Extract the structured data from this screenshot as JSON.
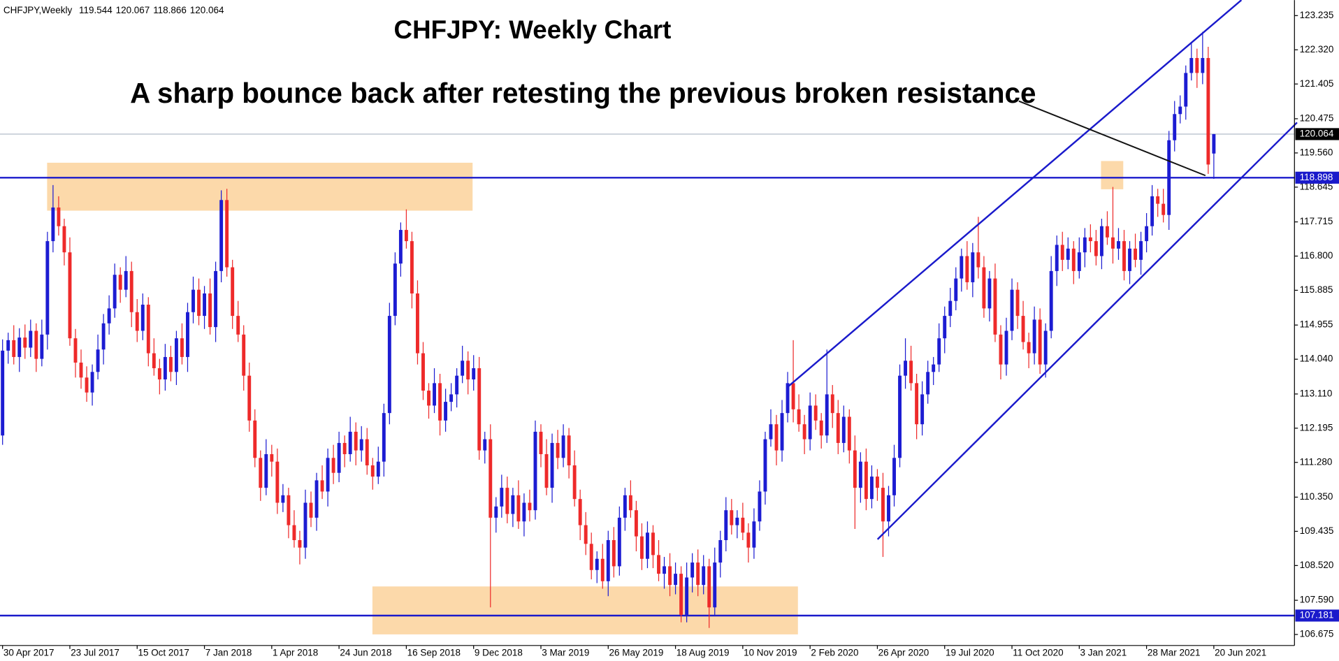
{
  "info": {
    "symbol": "CHFJPY,Weekly",
    "ohlc": [
      119.544,
      120.067,
      118.866,
      120.064
    ]
  },
  "chart_data": {
    "type": "candlestick",
    "title": "CHFJPY: Weekly Chart",
    "annotation": "A sharp bounce back after retesting the previous broken resistance",
    "up_color": "#1c1cd2",
    "down_color": "#ee2a2a",
    "ylim": [
      106.38,
      123.65
    ],
    "yticks": [
      123.235,
      {
        "value": 122.32,
        "label": "122.320"
      },
      121.405,
      120.475,
      {
        "value": 119.56,
        "label": "119.560"
      },
      118.645,
      117.715,
      {
        "value": 116.8,
        "label": "116.800"
      },
      115.885,
      114.955,
      {
        "value": 114.04,
        "label": "114.040"
      },
      {
        "value": 113.11,
        "label": "113.110"
      },
      112.195,
      {
        "value": 111.28,
        "label": "111.280"
      },
      {
        "value": 110.35,
        "label": "110.350"
      },
      109.435,
      {
        "value": 108.52,
        "label": "108.520"
      },
      {
        "value": 107.59,
        "label": "107.590"
      },
      106.675
    ],
    "price_lines": [
      {
        "value": 120.064,
        "color": "#aab4c2",
        "box_color": "#000000",
        "width": 1
      },
      {
        "value": 118.898,
        "color": "#1a1acb",
        "box_color": "#1a1acb",
        "width": 2
      },
      {
        "value": 107.181,
        "color": "#1a1acb",
        "box_color": "#1a1acb",
        "width": 2
      }
    ],
    "categories": [
      "30 Apr 2017",
      null,
      null,
      null,
      null,
      null,
      null,
      null,
      null,
      null,
      null,
      null,
      "23 Jul 2017",
      null,
      null,
      null,
      null,
      null,
      null,
      null,
      null,
      null,
      null,
      null,
      "15 Oct 2017",
      null,
      null,
      null,
      null,
      null,
      null,
      null,
      null,
      null,
      null,
      null,
      "7 Jan 2018",
      null,
      null,
      null,
      null,
      null,
      null,
      null,
      null,
      null,
      null,
      null,
      "1 Apr 2018",
      null,
      null,
      null,
      null,
      null,
      null,
      null,
      null,
      null,
      null,
      null,
      "24 Jun 2018",
      null,
      null,
      null,
      null,
      null,
      null,
      null,
      null,
      null,
      null,
      null,
      "16 Sep 2018",
      null,
      null,
      null,
      null,
      null,
      null,
      null,
      null,
      null,
      null,
      null,
      "9 Dec 2018",
      null,
      null,
      null,
      null,
      null,
      null,
      null,
      null,
      null,
      null,
      null,
      "3 Mar 2019",
      null,
      null,
      null,
      null,
      null,
      null,
      null,
      null,
      null,
      null,
      null,
      "26 May 2019",
      null,
      null,
      null,
      null,
      null,
      null,
      null,
      null,
      null,
      null,
      null,
      "18 Aug 2019",
      null,
      null,
      null,
      null,
      null,
      null,
      null,
      null,
      null,
      null,
      null,
      "10 Nov 2019",
      null,
      null,
      null,
      null,
      null,
      null,
      null,
      null,
      null,
      null,
      null,
      "2 Feb 2020",
      null,
      null,
      null,
      null,
      null,
      null,
      null,
      null,
      null,
      null,
      null,
      "26 Apr 2020",
      null,
      null,
      null,
      null,
      null,
      null,
      null,
      null,
      null,
      null,
      null,
      "19 Jul 2020",
      null,
      null,
      null,
      null,
      null,
      null,
      null,
      null,
      null,
      null,
      null,
      "11 Oct 2020",
      null,
      null,
      null,
      null,
      null,
      null,
      null,
      null,
      null,
      null,
      null,
      "3 Jan 2021",
      null,
      null,
      null,
      null,
      null,
      null,
      null,
      null,
      null,
      null,
      null,
      "28 Mar 2021",
      null,
      null,
      null,
      null,
      null,
      null,
      null,
      null,
      null,
      null,
      null,
      "20 Jun 2021"
    ],
    "open": [
      112.0,
      114.27,
      114.55,
      114.1,
      114.62,
      114.35,
      114.8,
      114.05,
      114.7,
      117.2,
      118.1,
      117.6,
      116.9,
      114.6,
      113.95,
      113.55,
      113.15,
      113.7,
      114.3,
      115.0,
      115.4,
      116.3,
      115.9,
      116.4,
      115.3,
      114.8,
      115.5,
      114.2,
      113.8,
      113.5,
      114.1,
      113.7,
      114.6,
      114.1,
      115.3,
      115.9,
      115.2,
      115.8,
      114.9,
      116.4,
      118.3,
      116.5,
      115.2,
      114.7,
      113.6,
      112.4,
      111.4,
      110.6,
      111.5,
      111.3,
      110.2,
      110.4,
      109.6,
      109.2,
      109.0,
      110.2,
      109.8,
      110.8,
      110.5,
      111.4,
      111.0,
      111.8,
      111.5,
      112.1,
      111.6,
      111.9,
      111.2,
      110.9,
      111.3,
      112.6,
      115.2,
      116.6,
      117.5,
      117.2,
      115.8,
      114.2,
      113.2,
      112.8,
      113.4,
      112.4,
      112.9,
      113.1,
      113.6,
      114.0,
      113.5,
      113.8,
      111.6,
      111.9,
      109.8,
      110.1,
      110.6,
      109.9,
      110.4,
      109.7,
      110.2,
      110.0,
      112.1,
      111.5,
      110.6,
      111.8,
      111.4,
      112.0,
      111.2,
      110.3,
      109.6,
      109.1,
      108.4,
      108.7,
      108.1,
      109.2,
      108.5,
      109.8,
      110.4,
      110.0,
      109.3,
      108.7,
      109.4,
      108.8,
      108.3,
      108.5,
      108.0,
      108.3,
      107.2,
      108.2,
      108.6,
      108.0,
      108.5,
      107.4,
      108.6,
      109.2,
      110.0,
      109.6,
      109.8,
      109.4,
      109.0,
      109.7,
      110.5,
      111.9,
      112.3,
      111.6,
      112.6,
      113.4,
      112.7,
      112.3,
      111.9,
      112.8,
      112.4,
      112.0,
      113.1,
      112.6,
      111.8,
      112.5,
      111.6,
      110.6,
      111.3,
      110.3,
      110.9,
      110.6,
      109.7,
      110.4,
      111.4,
      113.6,
      114.0,
      113.4,
      112.3,
      113.1,
      113.7,
      113.9,
      114.6,
      115.2,
      115.6,
      116.2,
      116.8,
      116.1,
      116.9,
      116.5,
      115.4,
      116.2,
      114.7,
      113.9,
      114.8,
      115.9,
      115.2,
      114.5,
      114.2,
      115.1,
      113.9,
      114.8,
      116.4,
      117.1,
      116.7,
      117.0,
      116.4,
      116.9,
      117.3,
      117.2,
      116.8,
      117.6,
      117.3,
      117.0,
      117.2,
      116.4,
      117.0,
      116.7,
      117.2,
      117.6,
      118.4,
      118.2,
      117.9,
      119.9,
      120.6,
      120.8,
      121.7,
      122.1,
      121.7,
      122.1,
      119.544
    ],
    "high": [
      114.57,
      114.75,
      114.95,
      114.87,
      114.97,
      115.1,
      115.0,
      115.1,
      117.45,
      118.7,
      118.4,
      117.8,
      117.3,
      114.85,
      114.3,
      113.85,
      113.9,
      114.7,
      115.25,
      115.75,
      116.6,
      116.5,
      116.8,
      116.65,
      115.65,
      115.8,
      115.7,
      114.6,
      114.05,
      114.45,
      114.4,
      114.8,
      115.0,
      115.55,
      116.25,
      116.2,
      116.0,
      116.2,
      116.65,
      118.56,
      118.6,
      116.7,
      115.6,
      114.95,
      113.95,
      112.7,
      111.6,
      111.9,
      111.75,
      111.65,
      110.7,
      110.6,
      110.0,
      109.45,
      110.55,
      110.5,
      111.0,
      111.2,
      111.65,
      111.75,
      112.1,
      112.0,
      112.5,
      112.35,
      112.25,
      112.2,
      111.4,
      111.7,
      112.85,
      115.55,
      116.9,
      117.7,
      118.05,
      117.45,
      116.15,
      114.5,
      113.4,
      113.8,
      113.65,
      113.25,
      113.4,
      113.8,
      114.4,
      114.25,
      114.15,
      114.1,
      112.1,
      112.3,
      110.35,
      110.95,
      110.9,
      110.6,
      110.8,
      110.45,
      110.55,
      112.4,
      112.3,
      111.9,
      112.05,
      112.15,
      112.3,
      112.2,
      111.6,
      110.55,
      109.95,
      109.4,
      108.9,
      109.1,
      109.45,
      109.55,
      110.1,
      110.6,
      110.8,
      110.25,
      109.65,
      109.7,
      109.6,
      109.2,
      108.75,
      108.85,
      108.6,
      108.5,
      108.6,
      108.85,
      108.95,
      108.8,
      108.7,
      109.0,
      109.45,
      110.35,
      110.3,
      110.0,
      110.2,
      109.65,
      110.05,
      110.8,
      112.1,
      112.7,
      112.55,
      112.95,
      113.7,
      114.55,
      113.1,
      112.55,
      113.15,
      113.1,
      112.6,
      114.3,
      113.35,
      112.95,
      112.8,
      112.7,
      112.0,
      111.55,
      111.65,
      111.2,
      111.1,
      111.0,
      110.65,
      111.75,
      113.9,
      114.6,
      114.4,
      113.65,
      113.45,
      114.0,
      114.1,
      115.0,
      115.45,
      115.95,
      116.5,
      117.0,
      117.2,
      117.15,
      117.85,
      116.8,
      116.4,
      116.6,
      114.95,
      115.15,
      116.2,
      116.1,
      115.6,
      114.75,
      115.45,
      115.4,
      115.0,
      116.8,
      117.35,
      117.45,
      117.3,
      117.2,
      117.3,
      117.55,
      117.65,
      117.5,
      117.8,
      118.0,
      118.65,
      117.55,
      117.5,
      117.2,
      117.4,
      117.45,
      117.95,
      118.7,
      118.6,
      118.6,
      120.15,
      120.95,
      121.1,
      121.9,
      122.5,
      122.35,
      122.8,
      122.4,
      120.067
    ],
    "low": [
      111.75,
      113.92,
      113.9,
      113.7,
      114.05,
      114.1,
      113.7,
      113.85,
      114.3,
      116.9,
      117.35,
      116.55,
      114.4,
      113.55,
      113.25,
      112.9,
      112.8,
      113.5,
      113.9,
      114.7,
      115.15,
      115.55,
      115.7,
      114.9,
      114.5,
      114.55,
      113.85,
      113.6,
      113.1,
      113.2,
      113.45,
      113.35,
      113.9,
      113.7,
      115.0,
      114.95,
      114.85,
      114.7,
      114.5,
      116.1,
      116.25,
      114.85,
      114.5,
      113.2,
      112.1,
      111.15,
      110.25,
      110.4,
      110.9,
      109.9,
      109.95,
      109.25,
      109.0,
      108.55,
      108.7,
      109.55,
      109.45,
      110.3,
      110.1,
      110.7,
      110.75,
      111.15,
      111.3,
      111.2,
      111.3,
      110.95,
      110.55,
      110.7,
      110.9,
      112.3,
      114.95,
      116.25,
      117.0,
      115.4,
      113.9,
      112.95,
      112.45,
      112.6,
      112.0,
      112.1,
      112.65,
      112.75,
      113.4,
      113.1,
      113.2,
      111.35,
      111.25,
      107.4,
      109.4,
      109.8,
      109.65,
      109.55,
      109.5,
      109.3,
      109.7,
      109.75,
      111.15,
      110.4,
      110.2,
      111.1,
      111.15,
      110.85,
      110.1,
      109.2,
      108.8,
      108.15,
      108.05,
      107.9,
      107.7,
      108.2,
      108.25,
      109.45,
      109.8,
      108.9,
      108.4,
      108.45,
      108.45,
      108.1,
      107.9,
      107.7,
      107.75,
      107.0,
      107.0,
      107.8,
      107.7,
      107.75,
      106.85,
      107.2,
      108.2,
      108.9,
      109.35,
      109.25,
      109.2,
      108.6,
      108.7,
      109.45,
      110.15,
      111.7,
      111.2,
      111.3,
      112.35,
      112.35,
      112.1,
      111.5,
      111.6,
      112.15,
      111.65,
      111.8,
      112.2,
      111.5,
      111.55,
      111.25,
      109.5,
      110.2,
      110.0,
      110.05,
      110.25,
      108.75,
      109.3,
      110.1,
      111.15,
      113.25,
      113.2,
      111.9,
      112.0,
      112.85,
      113.35,
      113.7,
      114.2,
      114.9,
      115.35,
      115.85,
      115.9,
      115.7,
      116.2,
      115.15,
      115.05,
      114.5,
      113.5,
      113.6,
      114.55,
      114.85,
      114.3,
      113.8,
      113.9,
      113.65,
      113.55,
      114.6,
      116.0,
      116.4,
      116.45,
      116.05,
      116.2,
      116.5,
      116.9,
      116.55,
      116.45,
      117.1,
      116.6,
      116.7,
      116.15,
      116.05,
      116.5,
      116.3,
      116.9,
      117.35,
      117.85,
      117.7,
      117.5,
      119.6,
      120.35,
      120.45,
      121.5,
      121.3,
      121.4,
      119.0,
      118.866
    ],
    "close": [
      114.27,
      114.55,
      114.1,
      114.62,
      114.35,
      114.8,
      114.05,
      114.7,
      117.2,
      118.1,
      117.6,
      116.9,
      114.6,
      113.95,
      113.55,
      113.15,
      113.7,
      114.3,
      115.0,
      115.4,
      116.3,
      115.9,
      116.4,
      115.3,
      114.8,
      115.5,
      114.2,
      113.8,
      113.5,
      114.1,
      113.7,
      114.6,
      114.1,
      115.3,
      115.9,
      115.2,
      115.8,
      114.9,
      116.4,
      118.3,
      116.5,
      115.2,
      114.7,
      113.6,
      112.4,
      111.4,
      110.6,
      111.5,
      111.3,
      110.2,
      110.4,
      109.6,
      109.2,
      109.0,
      110.2,
      109.8,
      110.8,
      110.5,
      111.4,
      111.0,
      111.8,
      111.5,
      112.1,
      111.6,
      111.9,
      111.2,
      110.9,
      111.3,
      112.6,
      115.2,
      116.6,
      117.5,
      117.2,
      115.8,
      114.2,
      113.2,
      112.8,
      113.4,
      112.4,
      112.9,
      113.1,
      113.6,
      114.0,
      113.5,
      113.8,
      111.6,
      111.9,
      109.8,
      110.1,
      110.6,
      109.9,
      110.4,
      109.7,
      110.2,
      110.0,
      112.1,
      111.5,
      110.6,
      111.8,
      111.4,
      112.0,
      111.2,
      110.3,
      109.6,
      109.1,
      108.4,
      108.7,
      108.1,
      109.2,
      108.5,
      109.8,
      110.4,
      110.0,
      109.3,
      108.7,
      109.4,
      108.8,
      108.3,
      108.5,
      108.0,
      108.3,
      107.2,
      108.2,
      108.6,
      108.0,
      108.5,
      107.4,
      108.6,
      109.2,
      110.0,
      109.6,
      109.8,
      109.4,
      109.0,
      109.7,
      110.5,
      111.9,
      112.3,
      111.6,
      112.6,
      113.4,
      112.7,
      112.3,
      111.9,
      112.8,
      112.4,
      112.0,
      113.1,
      112.6,
      111.8,
      112.5,
      111.6,
      110.6,
      111.3,
      110.3,
      110.9,
      110.6,
      109.7,
      110.4,
      111.4,
      113.6,
      114.0,
      113.4,
      112.3,
      113.1,
      113.7,
      113.9,
      114.6,
      115.2,
      115.6,
      116.2,
      116.8,
      116.1,
      116.9,
      116.5,
      115.4,
      116.2,
      114.7,
      113.9,
      114.8,
      115.9,
      115.2,
      114.5,
      114.2,
      115.1,
      113.9,
      114.8,
      116.4,
      117.1,
      116.7,
      117.0,
      116.4,
      116.9,
      117.3,
      117.2,
      116.8,
      117.6,
      117.3,
      117.0,
      117.2,
      116.4,
      117.0,
      116.7,
      117.2,
      117.6,
      118.4,
      118.2,
      117.9,
      119.9,
      120.6,
      120.8,
      121.7,
      122.1,
      121.7,
      122.1,
      119.25,
      120.064
    ]
  }
}
